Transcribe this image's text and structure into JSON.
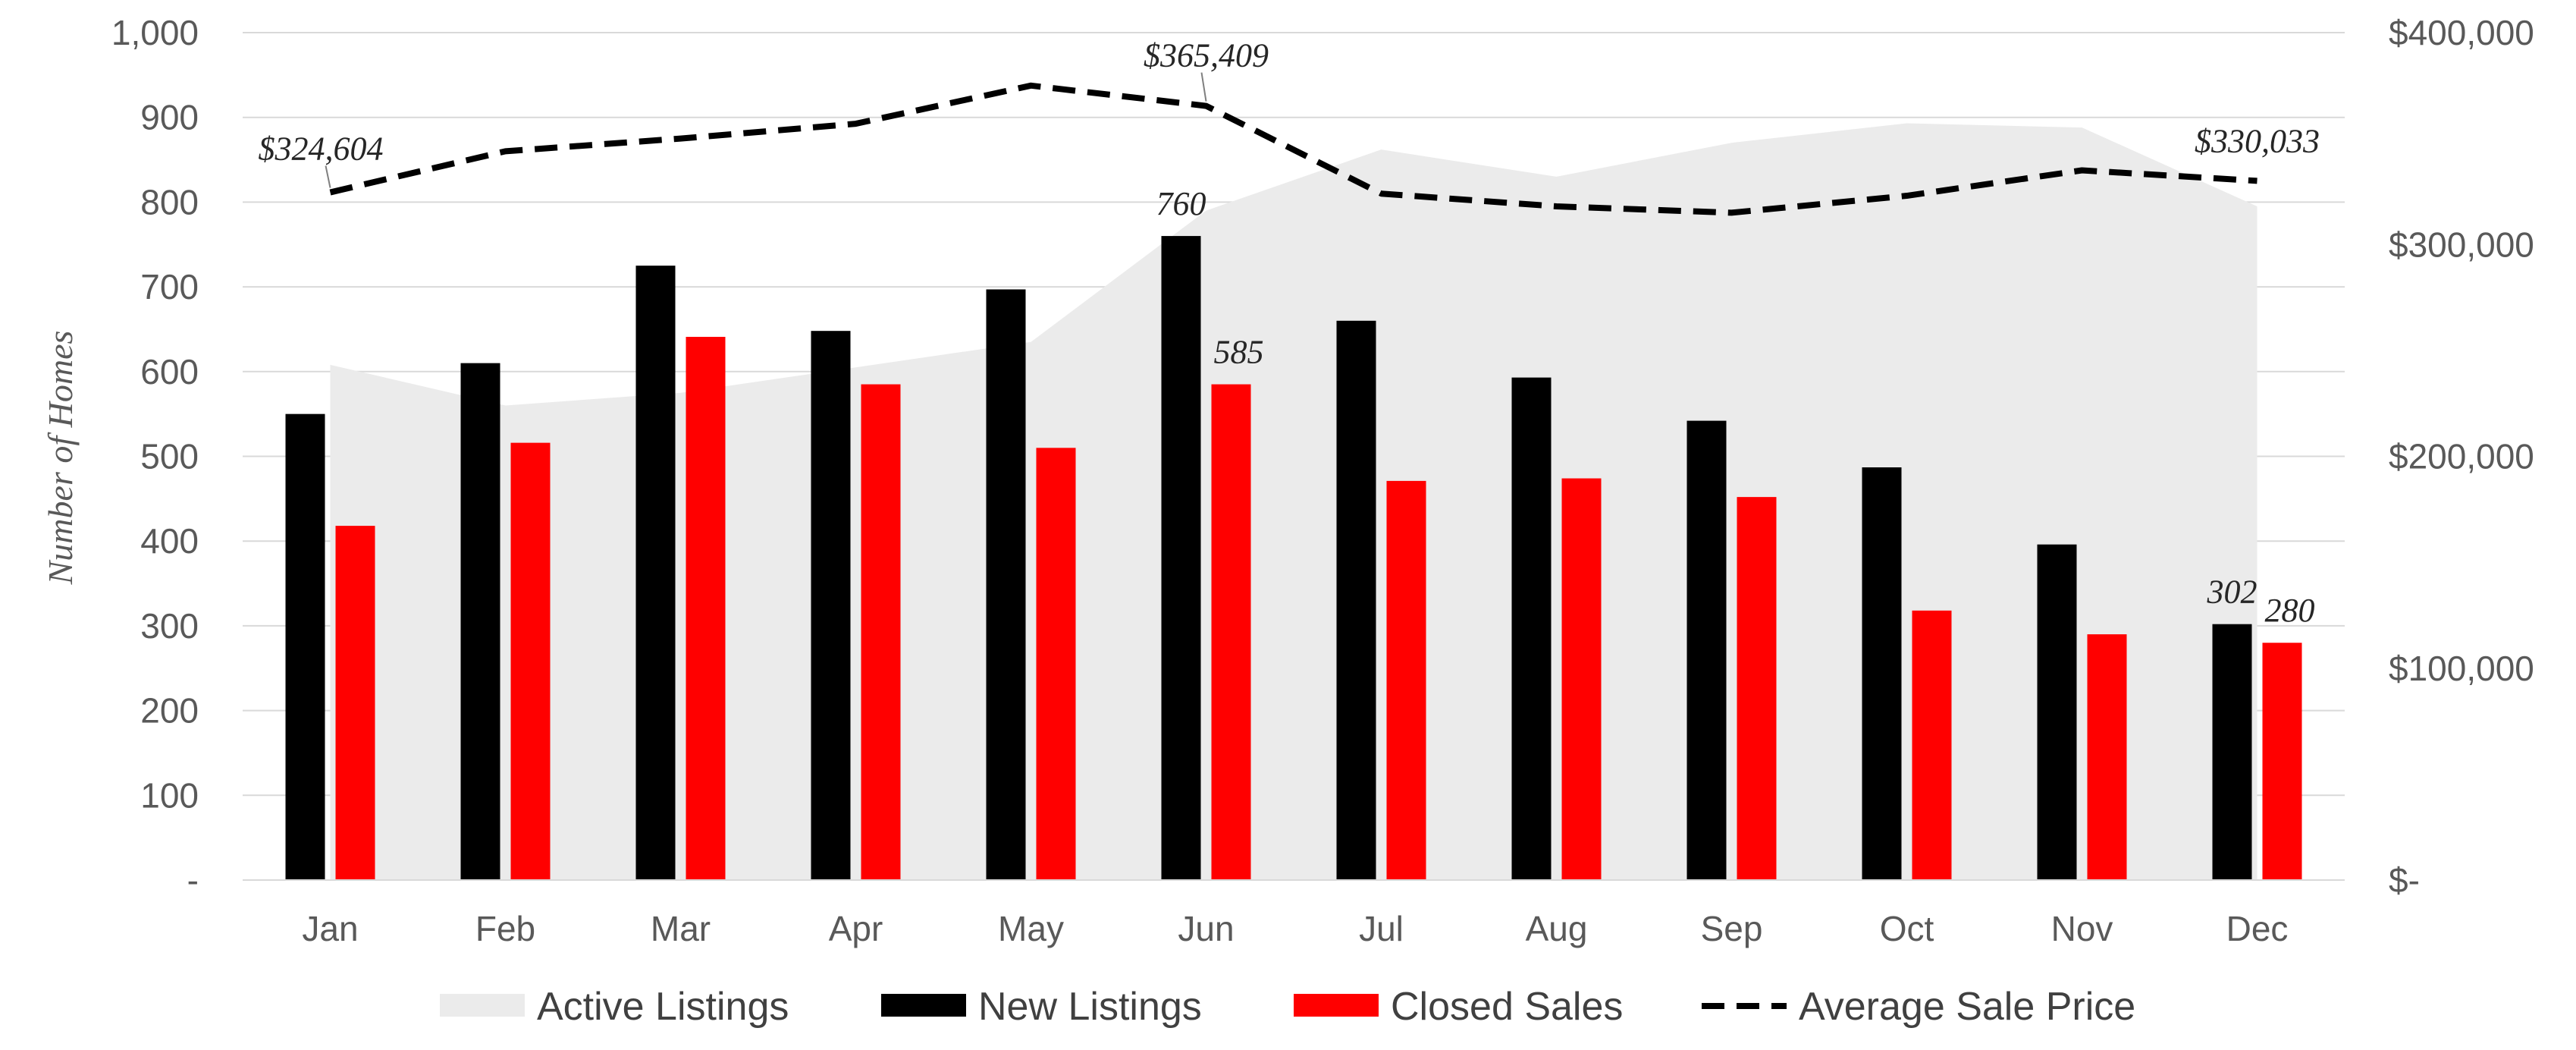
{
  "chart_data": {
    "type": "bar",
    "categories": [
      "Jan",
      "Feb",
      "Mar",
      "Apr",
      "May",
      "Jun",
      "Jul",
      "Aug",
      "Sep",
      "Oct",
      "Nov",
      "Dec"
    ],
    "series": [
      {
        "name": "Active Listings",
        "kind": "area",
        "axis": "left",
        "color": "#ebebeb",
        "values": [
          608,
          560,
          575,
          605,
          635,
          790,
          862,
          830,
          870,
          893,
          888,
          795
        ]
      },
      {
        "name": "New Listings",
        "kind": "bar",
        "axis": "left",
        "color": "#000000",
        "values": [
          550,
          610,
          725,
          648,
          697,
          760,
          660,
          593,
          542,
          487,
          396,
          302
        ]
      },
      {
        "name": "Closed Sales",
        "kind": "bar",
        "axis": "left",
        "color": "#ff0000",
        "values": [
          418,
          516,
          641,
          585,
          510,
          585,
          471,
          474,
          452,
          318,
          290,
          280
        ]
      },
      {
        "name": "Average Sale Price",
        "kind": "line",
        "axis": "right",
        "color": "#000000",
        "values": [
          324604,
          344000,
          350000,
          357000,
          375000,
          365409,
          324000,
          318000,
          315000,
          323000,
          335000,
          330033
        ]
      }
    ],
    "left_axis": {
      "label": "Number of Homes",
      "range": [
        0,
        1000
      ],
      "ticks": [
        0,
        100,
        200,
        300,
        400,
        500,
        600,
        700,
        800,
        900,
        1000
      ],
      "tick_labels": [
        "-",
        "100",
        "200",
        "300",
        "400",
        "500",
        "600",
        "700",
        "800",
        "900",
        "1,000"
      ]
    },
    "right_axis": {
      "range": [
        0,
        400000
      ],
      "ticks": [
        0,
        100000,
        200000,
        300000,
        400000
      ],
      "tick_labels": [
        "$-",
        "$100,000",
        "$200,000",
        "$300,000",
        "$400,000"
      ]
    },
    "data_labels": [
      {
        "series": "Average Sale Price",
        "category": "Jan",
        "text": "$324,604"
      },
      {
        "series": "Average Sale Price",
        "category": "Jun",
        "text": "$365,409"
      },
      {
        "series": "Average Sale Price",
        "category": "Dec",
        "text": "$330,033"
      },
      {
        "series": "New Listings",
        "category": "Jun",
        "text": "760"
      },
      {
        "series": "Closed Sales",
        "category": "Jun",
        "text": "585"
      },
      {
        "series": "New Listings",
        "category": "Dec",
        "text": "302"
      },
      {
        "series": "Closed Sales",
        "category": "Dec",
        "text": "280"
      }
    ],
    "legend": {
      "position": "bottom",
      "entries": [
        "Active Listings",
        "New Listings",
        "Closed Sales",
        "Average Sale Price"
      ]
    },
    "grid": true
  }
}
